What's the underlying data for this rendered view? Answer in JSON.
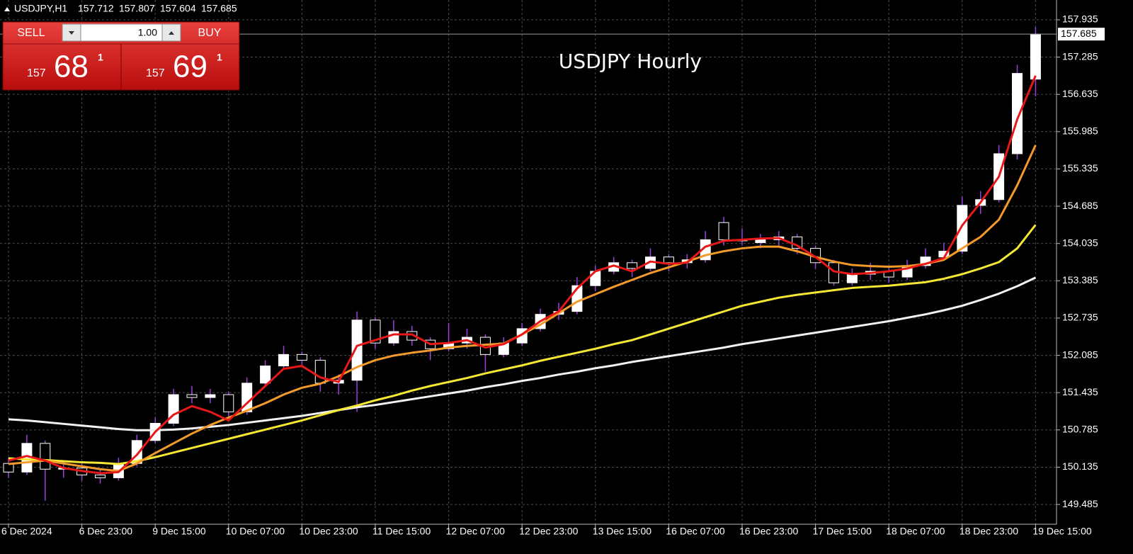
{
  "chart_data": {
    "type": "candlestick",
    "title": "USDJPY Hourly",
    "symbol": "USDJPY,H1",
    "header_ohlc": [
      157.712,
      157.807,
      157.604,
      157.685
    ],
    "last_price": 157.685,
    "categories": [
      "6 Dec 2024",
      null,
      null,
      null,
      "6 Dec 23:00",
      null,
      null,
      null,
      "9 Dec 15:00",
      null,
      null,
      null,
      "10 Dec 07:00",
      null,
      null,
      null,
      "10 Dec 23:00",
      null,
      null,
      null,
      "11 Dec 15:00",
      null,
      null,
      null,
      "12 Dec 07:00",
      null,
      null,
      null,
      "12 Dec 23:00",
      null,
      null,
      null,
      "13 Dec 15:00",
      null,
      null,
      null,
      "16 Dec 07:00",
      null,
      null,
      null,
      "16 Dec 23:00",
      null,
      null,
      null,
      "17 Dec 15:00",
      null,
      null,
      null,
      "18 Dec 07:00",
      null,
      null,
      null,
      "18 Dec 23:00",
      null,
      null,
      null,
      "19 Dec 15:00"
    ],
    "open": [
      150.2,
      150.05,
      150.55,
      150.1,
      150.12,
      150.0,
      149.95,
      150.2,
      150.6,
      150.9,
      151.4,
      151.35,
      151.4,
      151.1,
      151.6,
      151.9,
      152.1,
      152.0,
      151.6,
      151.65,
      152.7,
      152.3,
      152.5,
      152.35,
      152.2,
      152.3,
      152.4,
      152.1,
      152.3,
      152.55,
      152.8,
      152.85,
      153.3,
      153.55,
      153.7,
      153.6,
      153.8,
      153.7,
      153.75,
      154.4,
      154.1,
      154.05,
      154.1,
      154.15,
      153.95,
      153.7,
      153.35,
      153.5,
      153.55,
      153.45,
      153.65,
      153.8,
      153.9,
      154.7,
      154.8,
      155.6,
      156.9
    ],
    "high": [
      150.3,
      150.7,
      150.6,
      150.25,
      150.2,
      150.1,
      150.3,
      150.7,
      151.0,
      151.5,
      151.55,
      151.5,
      151.45,
      151.7,
      152.0,
      152.25,
      152.15,
      152.05,
      151.75,
      152.85,
      152.75,
      152.7,
      152.6,
      152.4,
      152.65,
      152.55,
      152.45,
      152.4,
      152.65,
      152.9,
      153.0,
      153.45,
      153.65,
      153.8,
      153.75,
      153.95,
      153.85,
      153.85,
      154.25,
      154.5,
      154.3,
      154.2,
      154.25,
      154.2,
      154.0,
      153.75,
      153.6,
      153.7,
      153.65,
      153.75,
      153.95,
      154.05,
      154.85,
      154.95,
      155.75,
      157.15,
      157.807
    ],
    "low": [
      149.95,
      150.0,
      149.55,
      149.95,
      149.9,
      149.85,
      149.9,
      150.15,
      150.55,
      150.85,
      151.25,
      151.25,
      151.0,
      151.05,
      151.55,
      151.85,
      151.9,
      151.45,
      151.4,
      151.1,
      152.2,
      152.25,
      152.25,
      152.0,
      152.15,
      152.2,
      151.8,
      152.05,
      152.25,
      152.5,
      152.7,
      152.8,
      153.2,
      153.5,
      153.45,
      153.55,
      153.55,
      153.6,
      153.7,
      154.0,
      154.0,
      153.95,
      154.0,
      153.85,
      153.6,
      153.3,
      153.3,
      153.4,
      153.35,
      153.4,
      153.6,
      153.75,
      153.85,
      154.55,
      154.75,
      155.5,
      156.6
    ],
    "close": [
      150.05,
      150.55,
      150.1,
      150.12,
      150.0,
      149.95,
      150.2,
      150.6,
      150.9,
      151.4,
      151.35,
      151.4,
      151.1,
      151.6,
      151.9,
      152.1,
      152.0,
      151.6,
      151.65,
      152.7,
      152.3,
      152.5,
      152.35,
      152.2,
      152.3,
      152.4,
      152.1,
      152.3,
      152.55,
      152.8,
      152.85,
      153.3,
      153.55,
      153.7,
      153.6,
      153.8,
      153.7,
      153.75,
      154.1,
      154.1,
      154.1,
      154.1,
      154.15,
      153.95,
      153.7,
      153.35,
      153.5,
      153.55,
      153.45,
      153.65,
      153.8,
      153.9,
      154.7,
      154.8,
      155.6,
      157.0,
      157.685
    ],
    "up_color": "#ffffff",
    "down_color": "#000000",
    "wick_color": "#9b40e0",
    "series": [
      {
        "color": "#f2f2f2",
        "values": [
          150.97,
          150.95,
          150.92,
          150.89,
          150.86,
          150.83,
          150.8,
          150.78,
          150.78,
          150.79,
          150.81,
          150.84,
          150.87,
          150.91,
          150.95,
          150.99,
          151.03,
          151.08,
          151.13,
          151.18,
          151.22,
          151.27,
          151.32,
          151.37,
          151.42,
          151.47,
          151.53,
          151.58,
          151.64,
          151.69,
          151.75,
          151.8,
          151.86,
          151.91,
          151.97,
          152.02,
          152.07,
          152.12,
          152.17,
          152.22,
          152.28,
          152.33,
          152.38,
          152.43,
          152.48,
          152.53,
          152.58,
          152.63,
          152.68,
          152.74,
          152.8,
          152.87,
          152.95,
          153.05,
          153.16,
          153.29,
          153.44
        ]
      },
      {
        "color": "#f5e834",
        "values": [
          150.29,
          150.27,
          150.26,
          150.24,
          150.22,
          150.21,
          150.19,
          150.24,
          150.31,
          150.39,
          150.47,
          150.55,
          150.63,
          150.71,
          150.79,
          150.87,
          150.95,
          151.04,
          151.13,
          151.21,
          151.3,
          151.38,
          151.47,
          151.55,
          151.62,
          151.69,
          151.77,
          151.84,
          151.91,
          151.99,
          152.06,
          152.13,
          152.2,
          152.28,
          152.35,
          152.45,
          152.55,
          152.65,
          152.75,
          152.85,
          152.95,
          153.02,
          153.09,
          153.14,
          153.18,
          153.22,
          153.26,
          153.28,
          153.3,
          153.33,
          153.36,
          153.42,
          153.5,
          153.6,
          153.71,
          153.95,
          154.36
        ]
      },
      {
        "color": "#f39a2a",
        "values": [
          150.19,
          150.22,
          150.25,
          150.2,
          150.15,
          150.1,
          150.07,
          150.2,
          150.38,
          150.55,
          150.72,
          150.87,
          151.0,
          151.12,
          151.25,
          151.4,
          151.52,
          151.59,
          151.72,
          151.88,
          152.0,
          152.08,
          152.13,
          152.17,
          152.22,
          152.25,
          152.27,
          152.29,
          152.45,
          152.62,
          152.82,
          153.02,
          153.15,
          153.28,
          153.4,
          153.52,
          153.62,
          153.72,
          153.83,
          153.9,
          153.95,
          153.98,
          153.98,
          153.9,
          153.8,
          153.72,
          153.66,
          153.64,
          153.63,
          153.64,
          153.68,
          153.75,
          153.95,
          154.15,
          154.45,
          155.05,
          155.75
        ]
      },
      {
        "color": "#e81818",
        "values": [
          150.25,
          150.33,
          150.25,
          150.12,
          150.07,
          150.03,
          150.05,
          150.35,
          150.75,
          151.05,
          151.2,
          151.1,
          150.95,
          151.25,
          151.55,
          151.85,
          151.9,
          151.7,
          151.62,
          152.25,
          152.35,
          152.45,
          152.45,
          152.28,
          152.3,
          152.35,
          152.22,
          152.28,
          152.45,
          152.68,
          152.85,
          153.25,
          153.55,
          153.65,
          153.55,
          153.72,
          153.68,
          153.7,
          153.98,
          154.08,
          154.1,
          154.12,
          154.13,
          154.0,
          153.8,
          153.55,
          153.5,
          153.52,
          153.55,
          153.6,
          153.68,
          153.78,
          154.35,
          154.75,
          155.2,
          156.2,
          156.96
        ]
      }
    ],
    "ylim": [
      149.14,
      158.28
    ],
    "yticks": [
      149.485,
      150.135,
      150.785,
      151.435,
      152.085,
      152.735,
      153.385,
      154.035,
      154.685,
      155.335,
      155.985,
      156.635,
      157.285,
      157.935
    ],
    "grid": true
  },
  "trade_panel": {
    "sell": "SELL",
    "buy": "BUY",
    "lot": "1.00",
    "sell_price": [
      "157",
      "68",
      "1"
    ],
    "buy_price": [
      "157",
      "69",
      "1"
    ]
  }
}
